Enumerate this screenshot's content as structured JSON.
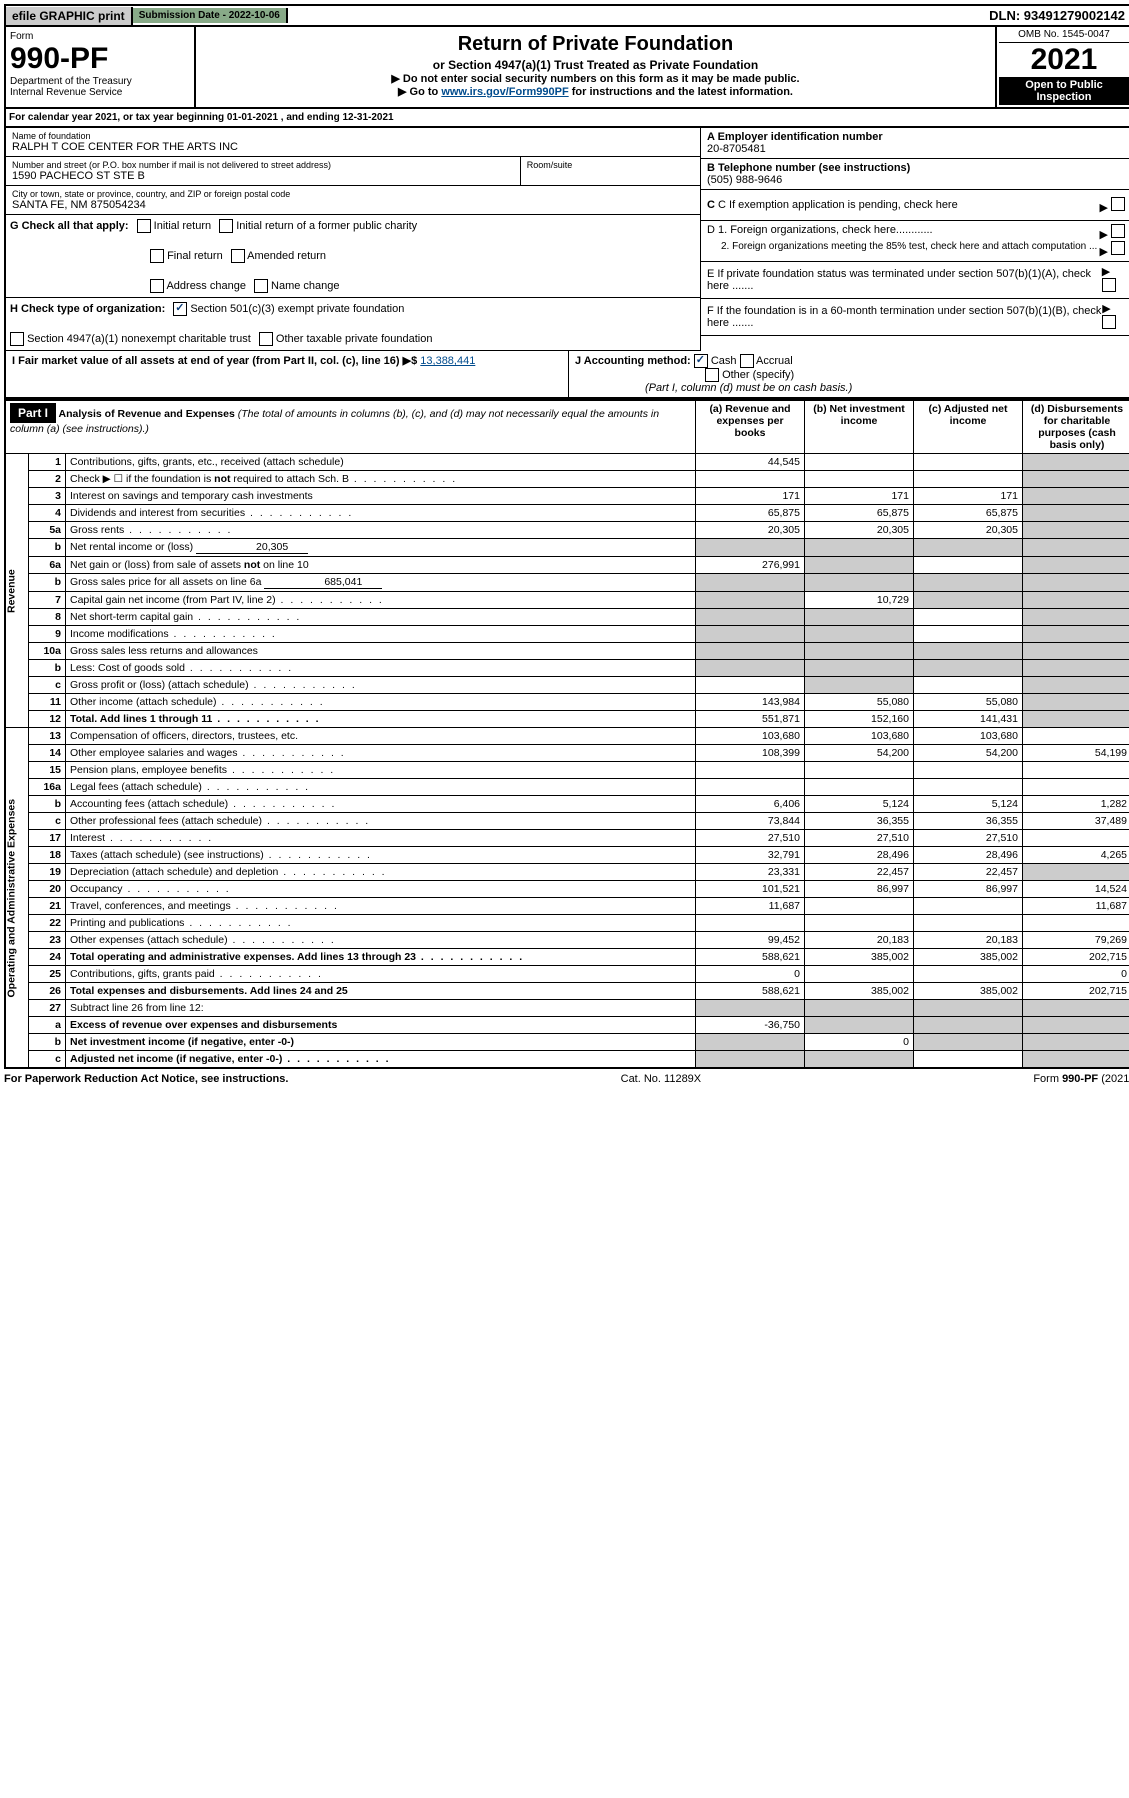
{
  "top": {
    "efile": "efile GRAPHIC print",
    "submission": "Submission Date - 2022-10-06",
    "dln": "DLN: 93491279002142"
  },
  "header": {
    "form_label": "Form",
    "form_number": "990-PF",
    "dept": "Department of the Treasury",
    "irs": "Internal Revenue Service",
    "title": "Return of Private Foundation",
    "subtitle": "or Section 4947(a)(1) Trust Treated as Private Foundation",
    "note1": "▶ Do not enter social security numbers on this form as it may be made public.",
    "note2_pre": "▶ Go to ",
    "note2_link": "www.irs.gov/Form990PF",
    "note2_post": " for instructions and the latest information.",
    "omb": "OMB No. 1545-0047",
    "year": "2021",
    "open": "Open to Public Inspection"
  },
  "calyear": "For calendar year 2021, or tax year beginning 01-01-2021                     , and ending 12-31-2021",
  "nameblock": {
    "name_lbl": "Name of foundation",
    "name": "RALPH T COE CENTER FOR THE ARTS INC",
    "addr_lbl": "Number and street (or P.O. box number if mail is not delivered to street address)",
    "addr": "1590 PACHECO ST STE B",
    "room_lbl": "Room/suite",
    "city_lbl": "City or town, state or province, country, and ZIP or foreign postal code",
    "city": "SANTA FE, NM  875054234"
  },
  "right": {
    "a_lbl": "A Employer identification number",
    "a_val": "20-8705481",
    "b_lbl": "B Telephone number (see instructions)",
    "b_val": "(505) 988-9646",
    "c_lbl": "C If exemption application is pending, check here",
    "d1": "D 1. Foreign organizations, check here............",
    "d2": "2. Foreign organizations meeting the 85% test, check here and attach computation ...",
    "e": "E  If private foundation status was terminated under section 507(b)(1)(A), check here .......",
    "f": "F  If the foundation is in a 60-month termination under section 507(b)(1)(B), check here .......",
    "arrow": "▶"
  },
  "g": {
    "label": "G Check all that apply:",
    "opts": [
      "Initial return",
      "Final return",
      "Address change",
      "Initial return of a former public charity",
      "Amended return",
      "Name change"
    ]
  },
  "h": {
    "label": "H Check type of organization:",
    "o1": "Section 501(c)(3) exempt private foundation",
    "o2": "Section 4947(a)(1) nonexempt charitable trust",
    "o3": "Other taxable private foundation"
  },
  "i": {
    "label": "I Fair market value of all assets at end of year (from Part II, col. (c), line 16) ▶$",
    "value": "13,388,441"
  },
  "j": {
    "label": "J Accounting method:",
    "cash": "Cash",
    "accrual": "Accrual",
    "other": "Other (specify)",
    "note": "(Part I, column (d) must be on cash basis.)"
  },
  "part1": {
    "label": "Part I",
    "title": "Analysis of Revenue and Expenses",
    "title_note": "(The total of amounts in columns (b), (c), and (d) may not necessarily equal the amounts in column (a) (see instructions).)",
    "cols": {
      "a": "(a)  Revenue and expenses per books",
      "b": "(b)  Net investment income",
      "c": "(c)  Adjusted net income",
      "d": "(d)  Disbursements for charitable purposes (cash basis only)"
    }
  },
  "sections": {
    "rev": "Revenue",
    "exp": "Operating and Administrative Expenses"
  },
  "rows": [
    {
      "n": "1",
      "d": "Contributions, gifts, grants, etc., received (attach schedule)",
      "a": "44,545",
      "ds": true
    },
    {
      "n": "2",
      "d": "Check ▶ ☐ if the foundation is not required to attach Sch. B",
      "dots": true,
      "ds": true
    },
    {
      "n": "3",
      "d": "Interest on savings and temporary cash investments",
      "a": "171",
      "b": "171",
      "c": "171",
      "ds": true
    },
    {
      "n": "4",
      "d": "Dividends and interest from securities",
      "dots": true,
      "a": "65,875",
      "b": "65,875",
      "c": "65,875",
      "ds": true
    },
    {
      "n": "5a",
      "d": "Gross rents",
      "dots": true,
      "a": "20,305",
      "b": "20,305",
      "c": "20,305",
      "ds": true
    },
    {
      "n": "b",
      "d": "Net rental income or (loss)",
      "fill": "20,305",
      "ab": true,
      "ds": true
    },
    {
      "n": "6a",
      "d": "Net gain or (loss) from sale of assets not on line 10",
      "a": "276,991",
      "bs": true,
      "ds": true
    },
    {
      "n": "b",
      "d": "Gross sales price for all assets on line 6a",
      "fill": "685,041",
      "ab": true,
      "ds": true
    },
    {
      "n": "7",
      "d": "Capital gain net income (from Part IV, line 2)",
      "dots": true,
      "as": true,
      "b": "10,729",
      "cs": true,
      "ds": true
    },
    {
      "n": "8",
      "d": "Net short-term capital gain",
      "dots": true,
      "as": true,
      "bs": true,
      "ds": true
    },
    {
      "n": "9",
      "d": "Income modifications",
      "dots": true,
      "as": true,
      "bs": true,
      "ds": true
    },
    {
      "n": "10a",
      "d": "Gross sales less returns and allowances",
      "box": true,
      "ab": true,
      "ds": true
    },
    {
      "n": "b",
      "d": "Less: Cost of goods sold",
      "dots": true,
      "box": true,
      "ab": true,
      "ds": true
    },
    {
      "n": "c",
      "d": "Gross profit or (loss) (attach schedule)",
      "dots": true,
      "bs": true,
      "ds": true
    },
    {
      "n": "11",
      "d": "Other income (attach schedule)",
      "dots": true,
      "a": "143,984",
      "b": "55,080",
      "c": "55,080",
      "ds": true
    },
    {
      "n": "12",
      "d": "Total. Add lines 1 through 11",
      "dots": true,
      "bold": true,
      "a": "551,871",
      "b": "152,160",
      "c": "141,431",
      "ds": true
    },
    {
      "n": "13",
      "d": "Compensation of officers, directors, trustees, etc.",
      "a": "103,680",
      "b": "103,680",
      "c": "103,680"
    },
    {
      "n": "14",
      "d": "Other employee salaries and wages",
      "dots": true,
      "a": "108,399",
      "b": "54,200",
      "c": "54,200",
      "dv": "54,199"
    },
    {
      "n": "15",
      "d": "Pension plans, employee benefits",
      "dots": true
    },
    {
      "n": "16a",
      "d": "Legal fees (attach schedule)",
      "dots": true
    },
    {
      "n": "b",
      "d": "Accounting fees (attach schedule)",
      "dots": true,
      "a": "6,406",
      "b": "5,124",
      "c": "5,124",
      "dv": "1,282"
    },
    {
      "n": "c",
      "d": "Other professional fees (attach schedule)",
      "dots": true,
      "a": "73,844",
      "b": "36,355",
      "c": "36,355",
      "dv": "37,489"
    },
    {
      "n": "17",
      "d": "Interest",
      "dots": true,
      "a": "27,510",
      "b": "27,510",
      "c": "27,510"
    },
    {
      "n": "18",
      "d": "Taxes (attach schedule) (see instructions)",
      "dots": true,
      "a": "32,791",
      "b": "28,496",
      "c": "28,496",
      "dv": "4,265"
    },
    {
      "n": "19",
      "d": "Depreciation (attach schedule) and depletion",
      "dots": true,
      "a": "23,331",
      "b": "22,457",
      "c": "22,457",
      "ds": true
    },
    {
      "n": "20",
      "d": "Occupancy",
      "dots": true,
      "a": "101,521",
      "b": "86,997",
      "c": "86,997",
      "dv": "14,524"
    },
    {
      "n": "21",
      "d": "Travel, conferences, and meetings",
      "dots": true,
      "a": "11,687",
      "dv": "11,687"
    },
    {
      "n": "22",
      "d": "Printing and publications",
      "dots": true
    },
    {
      "n": "23",
      "d": "Other expenses (attach schedule)",
      "dots": true,
      "a": "99,452",
      "b": "20,183",
      "c": "20,183",
      "dv": "79,269"
    },
    {
      "n": "24",
      "d": "Total operating and administrative expenses. Add lines 13 through 23",
      "dots": true,
      "bold": true,
      "a": "588,621",
      "b": "385,002",
      "c": "385,002",
      "dv": "202,715"
    },
    {
      "n": "25",
      "d": "Contributions, gifts, grants paid",
      "dots": true,
      "a": "0",
      "dv": "0"
    },
    {
      "n": "26",
      "d": "Total expenses and disbursements. Add lines 24 and 25",
      "bold": true,
      "a": "588,621",
      "b": "385,002",
      "c": "385,002",
      "dv": "202,715"
    },
    {
      "n": "27",
      "d": "Subtract line 26 from line 12:",
      "as": true,
      "bs": true,
      "cs": true,
      "ds": true
    },
    {
      "n": "a",
      "d": "Excess of revenue over expenses and disbursements",
      "bold": true,
      "a": "-36,750",
      "bs": true,
      "cs": true,
      "ds": true
    },
    {
      "n": "b",
      "d": "Net investment income (if negative, enter -0-)",
      "bold": true,
      "as": true,
      "b": "0",
      "cs": true,
      "ds": true
    },
    {
      "n": "c",
      "d": "Adjusted net income (if negative, enter -0-)",
      "dots": true,
      "bold": true,
      "as": true,
      "bs": true,
      "ds": true
    }
  ],
  "footer": {
    "left": "For Paperwork Reduction Act Notice, see instructions.",
    "mid": "Cat. No. 11289X",
    "right": "Form 990-PF (2021)"
  }
}
